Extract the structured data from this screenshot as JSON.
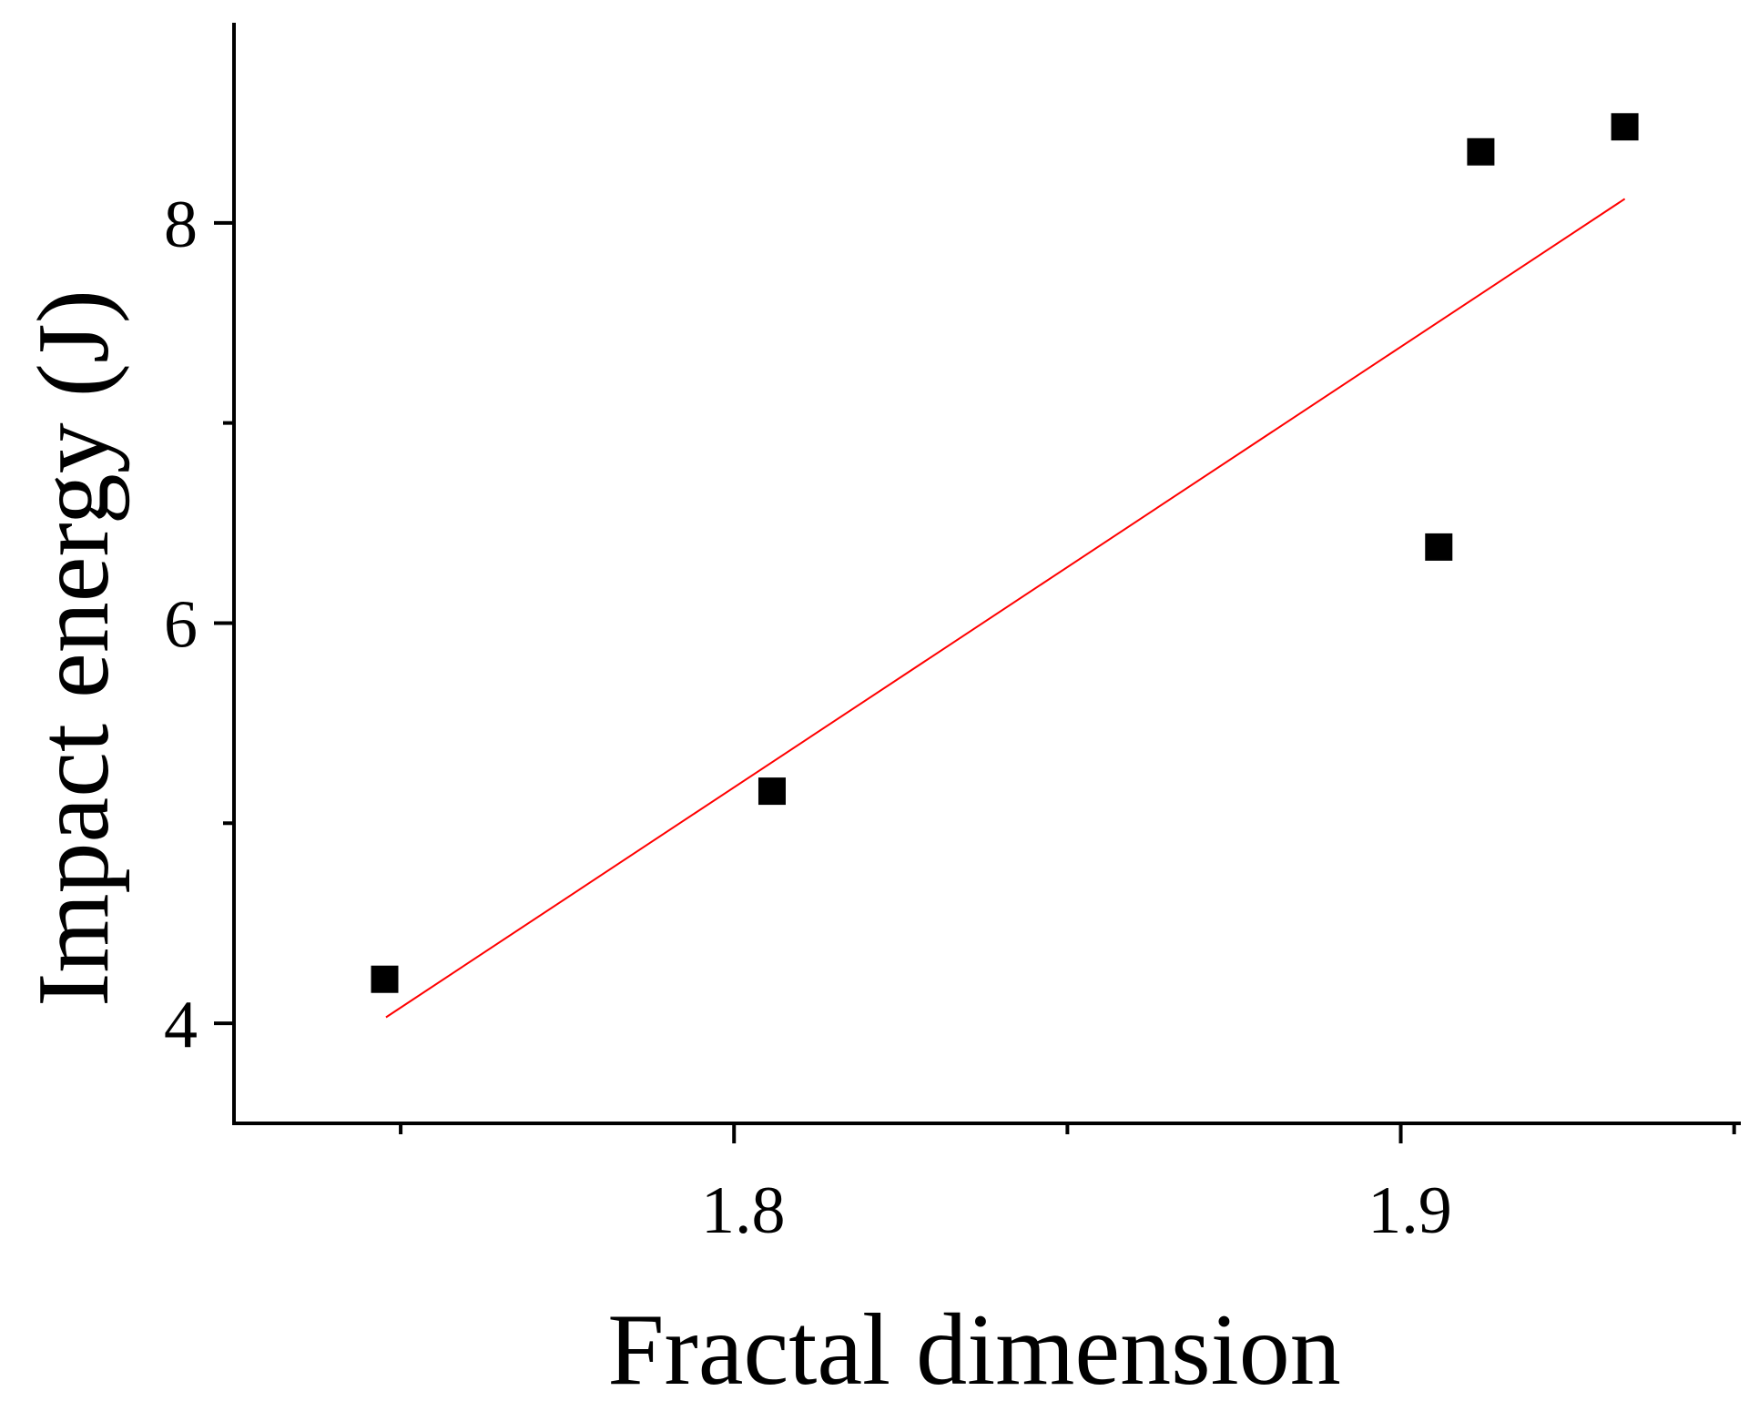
{
  "chart_data": {
    "type": "scatter",
    "x_label": "Fractal dimension",
    "y_label": "Impact energy (J)",
    "xlim": [
      1.725,
      1.951
    ],
    "ylim": [
      3.5,
      9.0
    ],
    "xticks": [
      1.8,
      1.9
    ],
    "yticks": [
      4,
      6,
      8
    ],
    "xminorticks": [
      1.75,
      1.85,
      1.95
    ],
    "yminorticks": [
      5,
      7
    ],
    "series": [
      {
        "color": "#000000",
        "x": [
          1.7476,
          1.8057,
          1.9057,
          1.912,
          1.9336
        ],
        "values": [
          4.22,
          5.16,
          6.38,
          8.355,
          8.48
        ]
      }
    ],
    "fit": {
      "color": "#ff0000",
      "x": [
        1.7478,
        1.9336
      ],
      "values": [
        4.03,
        8.12
      ]
    }
  }
}
